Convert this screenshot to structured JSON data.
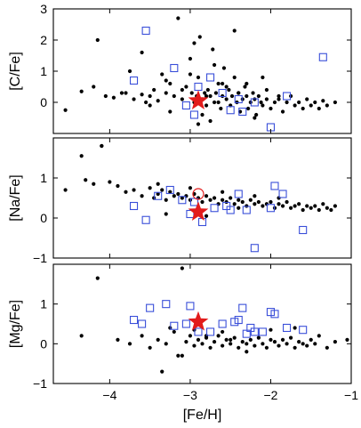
{
  "chart_data": {
    "type": "scatter",
    "xlabel": "[Fe/H]",
    "xlim": [
      -4.7,
      -1.0
    ],
    "x_ticks": [
      -4,
      -3,
      -2,
      -1
    ],
    "x_tick_labels": [
      "−4",
      "−3",
      "−2",
      "−1"
    ],
    "colors": {
      "dots": "#000000",
      "squares": "#3a4fd9",
      "star": "#e21b1b"
    },
    "panels": [
      {
        "ylabel": "[C/Fe]",
        "ylim": [
          -1,
          3
        ],
        "y_ticks": [
          0,
          1,
          2,
          3
        ],
        "y_tick_labels": [
          "0",
          "1",
          "2",
          "3"
        ],
        "series": [
          {
            "marker": "dot",
            "x": [
              -4.55,
              -4.35,
              -4.2,
              -4.15,
              -4.05,
              -3.95,
              -3.85,
              -3.75,
              -3.7,
              -3.6,
              -3.55,
              -3.5,
              -3.45,
              -3.4,
              -3.35,
              -3.3,
              -3.25,
              -3.2,
              -3.15,
              -3.1,
              -3.05,
              -3.0,
              -2.98,
              -2.95,
              -2.92,
              -2.9,
              -2.88,
              -2.85,
              -2.82,
              -2.8,
              -2.78,
              -2.75,
              -2.72,
              -2.7,
              -2.68,
              -2.65,
              -2.62,
              -2.6,
              -2.58,
              -2.55,
              -2.52,
              -2.5,
              -2.48,
              -2.45,
              -2.42,
              -2.4,
              -2.38,
              -2.35,
              -2.32,
              -2.3,
              -2.28,
              -2.25,
              -2.22,
              -2.2,
              -2.18,
              -2.15,
              -2.12,
              -2.1,
              -2.05,
              -2.0,
              -1.95,
              -1.9,
              -1.85,
              -1.8,
              -1.75,
              -1.7,
              -1.65,
              -1.6,
              -1.55,
              -1.5,
              -1.45,
              -1.4,
              -1.35,
              -1.3,
              -1.2,
              -3.8,
              -3.6,
              -3.3,
              -3.1,
              -2.95,
              -2.85,
              -2.7,
              -2.55,
              -2.45,
              -2.3,
              -2.2,
              -2.05,
              -1.9,
              -2.75,
              -3.0,
              -2.6,
              -2.9,
              -3.25,
              -2.4,
              -2.1,
              -3.5,
              -2.8,
              -2.65
            ],
            "y": [
              -0.25,
              0.35,
              0.5,
              2.0,
              0.2,
              0.15,
              0.3,
              1.0,
              0.1,
              0.25,
              0.0,
              0.2,
              0.4,
              0.05,
              0.9,
              0.3,
              0.6,
              0.2,
              2.7,
              0.1,
              0.5,
              1.4,
              0.3,
              0.0,
              0.2,
              0.8,
              2.1,
              0.1,
              0.3,
              -0.1,
              0.4,
              0.2,
              1.7,
              0.0,
              0.3,
              0.6,
              -0.2,
              0.2,
              1.1,
              0.1,
              0.4,
              -0.1,
              0.2,
              0.8,
              0.0,
              0.3,
              -0.3,
              0.1,
              0.5,
              0.2,
              -0.2,
              0.0,
              0.3,
              0.1,
              -0.4,
              0.2,
              0.0,
              -0.1,
              0.1,
              -0.2,
              0.0,
              0.1,
              -0.3,
              0.0,
              0.2,
              -0.1,
              0.0,
              -0.2,
              0.1,
              -0.1,
              0.0,
              -0.2,
              0.05,
              -0.1,
              0.0,
              0.3,
              1.6,
              0.7,
              0.4,
              1.9,
              -0.4,
              1.2,
              0.5,
              2.3,
              0.6,
              -0.5,
              0.4,
              0.2,
              -0.6,
              0.9,
              0.6,
              -0.7,
              -0.3,
              0.3,
              0.8,
              -0.1,
              0.2,
              0.0
            ]
          },
          {
            "marker": "open-square",
            "x": [
              -3.7,
              -3.55,
              -3.2,
              -3.05,
              -2.95,
              -2.9,
              -2.75,
              -2.6,
              -2.5,
              -2.4,
              -2.35,
              -2.2,
              -2.0,
              -1.35,
              -1.8
            ],
            "y": [
              0.7,
              2.3,
              1.1,
              -0.1,
              -0.4,
              0.5,
              0.8,
              0.3,
              -0.25,
              0.1,
              -0.3,
              0.0,
              -0.8,
              1.45,
              0.2
            ]
          },
          {
            "marker": "star",
            "x": [
              -2.9
            ],
            "y": [
              0.05
            ]
          }
        ]
      },
      {
        "ylabel": "[Na/Fe]",
        "ylim": [
          -1,
          2
        ],
        "y_ticks": [
          -1,
          0,
          1
        ],
        "y_tick_labels": [
          "−1",
          "0",
          "1"
        ],
        "series": [
          {
            "marker": "dot",
            "x": [
              -4.55,
              -4.3,
              -4.2,
              -4.1,
              -4.0,
              -3.9,
              -3.8,
              -3.7,
              -3.6,
              -3.5,
              -3.45,
              -3.4,
              -3.35,
              -3.3,
              -3.25,
              -3.2,
              -3.15,
              -3.1,
              -3.05,
              -3.0,
              -2.95,
              -2.9,
              -2.85,
              -2.8,
              -2.75,
              -2.7,
              -2.65,
              -2.6,
              -2.55,
              -2.5,
              -2.45,
              -2.4,
              -2.35,
              -2.3,
              -2.25,
              -2.2,
              -2.15,
              -2.1,
              -2.05,
              -2.0,
              -1.95,
              -1.9,
              -1.85,
              -1.8,
              -1.75,
              -1.7,
              -1.65,
              -1.6,
              -1.55,
              -1.5,
              -1.45,
              -1.4,
              -1.35,
              -1.3,
              -1.25,
              -1.2,
              -4.35,
              -4.1,
              -3.4,
              -3.0,
              -2.6,
              -2.2,
              -1.9,
              -3.3,
              -2.8,
              -2.4
            ],
            "y": [
              0.7,
              0.95,
              0.85,
              1.8,
              0.9,
              0.8,
              0.65,
              0.7,
              0.55,
              0.75,
              0.5,
              0.6,
              0.7,
              0.45,
              0.65,
              0.55,
              0.6,
              0.5,
              0.55,
              0.45,
              0.6,
              0.5,
              0.4,
              0.55,
              0.45,
              0.5,
              0.35,
              0.45,
              0.4,
              0.5,
              0.35,
              0.45,
              0.4,
              0.3,
              0.45,
              0.35,
              0.4,
              0.3,
              0.35,
              0.4,
              0.25,
              0.35,
              0.3,
              0.4,
              0.25,
              0.3,
              0.35,
              0.2,
              0.3,
              0.25,
              0.3,
              0.2,
              0.35,
              0.25,
              0.2,
              0.3,
              1.55,
              1.8,
              0.85,
              0.75,
              0.65,
              0.55,
              0.5,
              0.1,
              0.05,
              0.25
            ]
          },
          {
            "marker": "open-square",
            "x": [
              -3.7,
              -3.55,
              -3.4,
              -3.25,
              -3.0,
              -2.95,
              -2.85,
              -2.7,
              -2.55,
              -2.4,
              -2.3,
              -2.2,
              -2.0,
              -1.95,
              -1.85,
              -1.6,
              -3.1,
              -2.5
            ],
            "y": [
              0.3,
              -0.05,
              0.55,
              0.7,
              0.1,
              0.4,
              -0.1,
              0.25,
              0.3,
              0.6,
              0.2,
              -0.75,
              0.25,
              0.8,
              0.6,
              -0.3,
              0.45,
              0.2
            ]
          },
          {
            "marker": "star",
            "x": [
              -2.9
            ],
            "y": [
              0.15
            ]
          },
          {
            "marker": "open-circle",
            "x": [
              -2.9
            ],
            "y": [
              0.6
            ]
          }
        ]
      },
      {
        "ylabel": "[Mg/Fe]",
        "ylim": [
          -1,
          2
        ],
        "y_ticks": [
          -1,
          0,
          1
        ],
        "y_tick_labels": [
          "−1",
          "0",
          "1"
        ],
        "series": [
          {
            "marker": "dot",
            "x": [
              -4.35,
              -4.15,
              -3.9,
              -3.75,
              -3.6,
              -3.5,
              -3.4,
              -3.3,
              -3.2,
              -3.15,
              -3.1,
              -3.05,
              -3.0,
              -2.95,
              -2.9,
              -2.85,
              -2.8,
              -2.75,
              -2.7,
              -2.65,
              -2.6,
              -2.55,
              -2.5,
              -2.45,
              -2.4,
              -2.35,
              -2.3,
              -2.25,
              -2.2,
              -2.15,
              -2.1,
              -2.05,
              -2.0,
              -1.95,
              -1.9,
              -1.85,
              -1.8,
              -1.75,
              -1.7,
              -1.65,
              -1.6,
              -1.55,
              -1.5,
              -1.45,
              -1.4,
              -1.3,
              -1.2,
              -1.05,
              -3.35,
              -3.25,
              -2.95,
              -2.6,
              -2.3,
              -2.0,
              -1.7,
              -3.1,
              -2.8,
              -2.5
            ],
            "y": [
              0.2,
              1.65,
              0.1,
              0.0,
              0.2,
              -0.1,
              0.1,
              0.0,
              0.3,
              -0.3,
              1.9,
              0.05,
              0.2,
              -0.05,
              0.1,
              0.0,
              0.15,
              -0.1,
              0.05,
              0.2,
              -0.05,
              0.1,
              0.0,
              0.15,
              -0.1,
              0.05,
              0.0,
              0.1,
              -0.05,
              0.15,
              0.0,
              -0.1,
              0.1,
              0.05,
              -0.05,
              0.1,
              0.0,
              0.15,
              -0.1,
              0.05,
              0.0,
              -0.05,
              0.1,
              0.0,
              0.2,
              -0.1,
              0.05,
              0.1,
              -0.7,
              0.4,
              0.35,
              0.3,
              -0.2,
              0.35,
              0.4,
              -0.3,
              0.2,
              0.1
            ]
          },
          {
            "marker": "open-square",
            "x": [
              -3.7,
              -3.6,
              -3.5,
              -3.3,
              -3.2,
              -3.05,
              -3.0,
              -2.9,
              -2.75,
              -2.6,
              -2.45,
              -2.4,
              -2.35,
              -2.3,
              -2.2,
              -2.0,
              -1.95,
              -1.8,
              -1.6,
              -2.25,
              -2.1
            ],
            "y": [
              0.6,
              0.5,
              0.9,
              1.0,
              0.45,
              0.5,
              0.95,
              0.3,
              0.3,
              0.5,
              0.55,
              0.6,
              0.9,
              0.25,
              0.3,
              0.8,
              0.75,
              0.4,
              0.35,
              0.4,
              0.3
            ]
          },
          {
            "marker": "star",
            "x": [
              -2.9
            ],
            "y": [
              0.55
            ]
          }
        ]
      }
    ]
  }
}
